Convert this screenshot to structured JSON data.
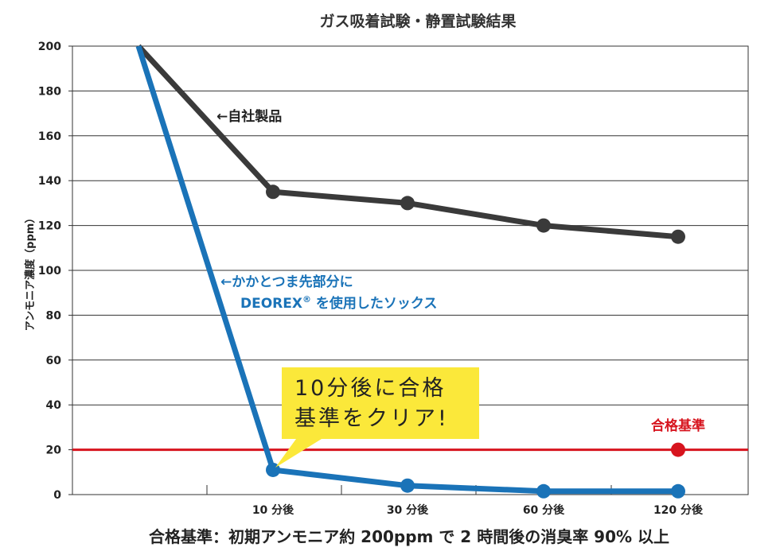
{
  "chart_data": {
    "type": "line",
    "title": "ガス吸着試験・静置試験結果",
    "ylabel": "アンモニア濃度（ppm）",
    "xlabel": "",
    "ylim": [
      0,
      200
    ],
    "yticks": [
      0,
      20,
      40,
      60,
      80,
      100,
      120,
      140,
      160,
      180,
      200
    ],
    "grid": true,
    "categories": [
      "",
      "10 分後",
      "30 分後",
      "60 分後",
      "120 分後"
    ],
    "series": [
      {
        "name": "←自社製品",
        "color": "#3a3a3a",
        "values": [
          200,
          135,
          130,
          120,
          115
        ]
      },
      {
        "name": "←かかとつま先部分に DEOREX® を使用したソックス",
        "color": "#1a73b8",
        "values": [
          200,
          11,
          4,
          1.5,
          1.5
        ]
      }
    ],
    "threshold": {
      "label": "合格基準",
      "value": 20,
      "color": "#d7141e"
    },
    "annotations": {
      "own_product": "←自社製品",
      "deorex_line1": "←かかとつま先部分に",
      "deorex_line2": "DEOREX",
      "deorex_reg": "®",
      "deorex_line2b": " を使用したソックス",
      "callout_line1": "10分後に合格",
      "callout_line2": "基準をクリア!"
    },
    "footnote": "合格基準：初期アンモニア約 200ppm で 2 時間後の消臭率 90% 以上"
  }
}
